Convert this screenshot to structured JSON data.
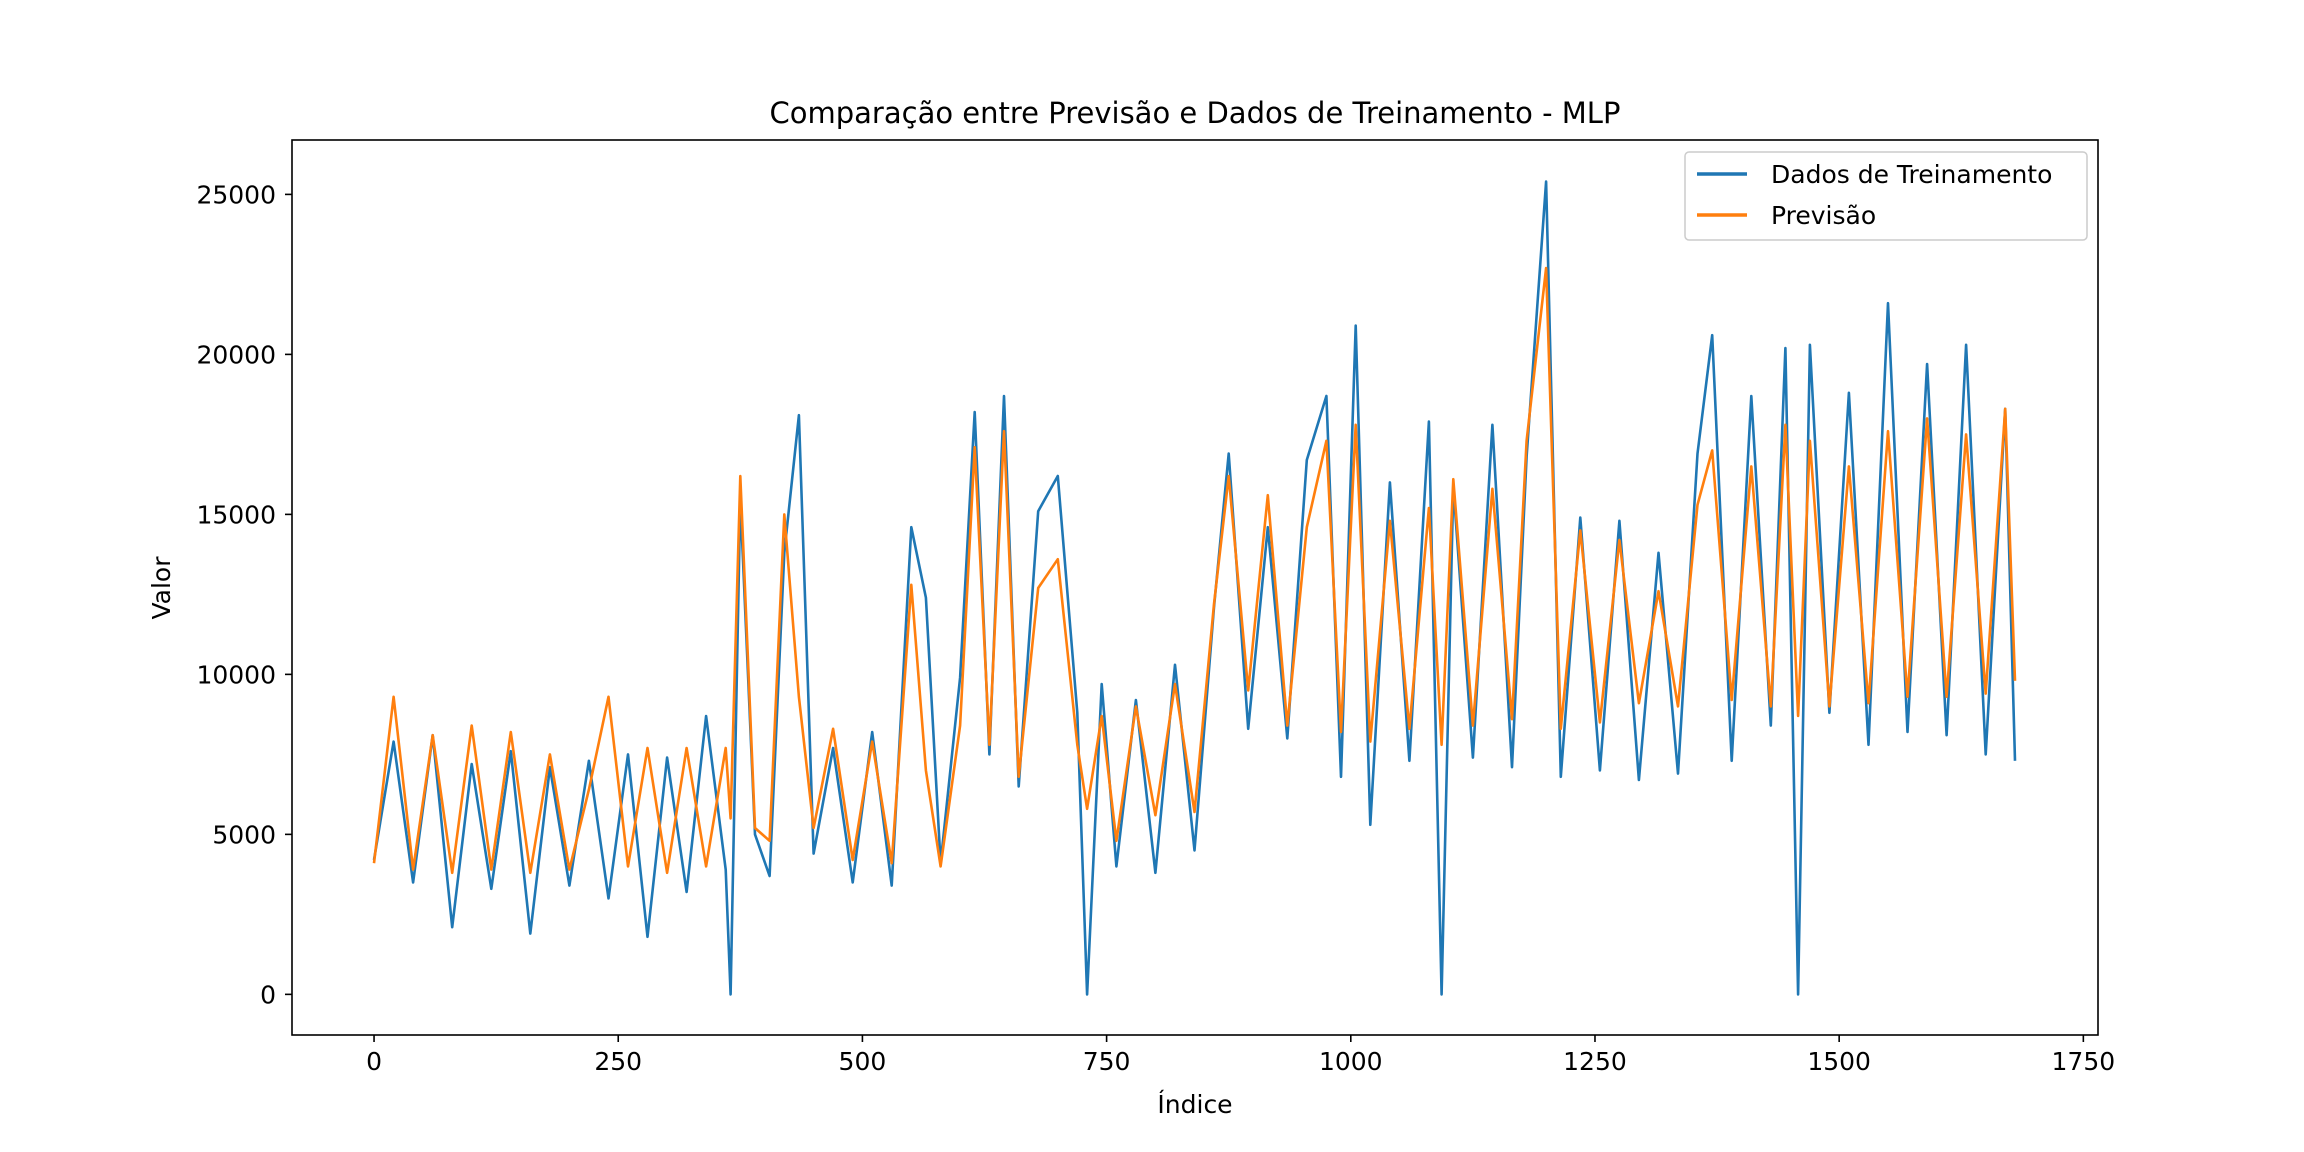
{
  "chart_data": {
    "type": "line",
    "title": "Comparação entre Previsão e Dados de Treinamento - MLP",
    "xlabel": "Índice",
    "ylabel": "Valor",
    "xlim": [
      -84,
      1765
    ],
    "ylim": [
      -1270,
      26700
    ],
    "xticks": [
      0,
      250,
      500,
      750,
      1000,
      1250,
      1500,
      1750
    ],
    "yticks": [
      0,
      5000,
      10000,
      15000,
      20000,
      25000
    ],
    "grid": false,
    "legend_position": "top-right",
    "series": [
      {
        "name": "Dados de Treinamento",
        "color": "#1f77b4",
        "x": [
          0,
          20,
          40,
          60,
          80,
          100,
          120,
          140,
          160,
          180,
          200,
          220,
          240,
          260,
          280,
          300,
          320,
          340,
          360,
          365,
          375,
          390,
          405,
          420,
          435,
          450,
          470,
          490,
          510,
          530,
          550,
          565,
          580,
          600,
          615,
          630,
          645,
          660,
          680,
          700,
          720,
          730,
          745,
          760,
          780,
          800,
          820,
          840,
          860,
          875,
          895,
          915,
          935,
          955,
          975,
          990,
          1005,
          1020,
          1040,
          1060,
          1080,
          1093,
          1105,
          1125,
          1145,
          1165,
          1180,
          1200,
          1215,
          1235,
          1255,
          1275,
          1295,
          1315,
          1335,
          1355,
          1370,
          1390,
          1410,
          1430,
          1445,
          1458,
          1470,
          1490,
          1510,
          1530,
          1550,
          1570,
          1590,
          1610,
          1630,
          1650,
          1670,
          1680
        ],
        "y": [
          4200,
          7900,
          3500,
          8100,
          2100,
          7200,
          3300,
          7600,
          1900,
          7100,
          3400,
          7300,
          3000,
          7500,
          1800,
          7400,
          3200,
          8700,
          3900,
          0,
          15500,
          5000,
          3700,
          13800,
          18100,
          4400,
          7700,
          3500,
          8200,
          3400,
          14600,
          12400,
          4100,
          9900,
          18200,
          7500,
          18700,
          6500,
          15100,
          16200,
          8800,
          0,
          9700,
          4000,
          9200,
          3800,
          10300,
          4500,
          12100,
          16900,
          8300,
          14600,
          8000,
          16700,
          18700,
          6800,
          20900,
          5300,
          16000,
          7300,
          17900,
          0,
          15900,
          7400,
          17800,
          7100,
          16800,
          25400,
          6800,
          14900,
          7000,
          14800,
          6700,
          13800,
          6900,
          16900,
          20600,
          7300,
          18700,
          8400,
          20200,
          0,
          20300,
          8800,
          18800,
          7800,
          21600,
          8200,
          19700,
          8100,
          20300,
          7500,
          18300,
          7300
        ]
      },
      {
        "name": "Previsão",
        "color": "#ff7f0e",
        "x": [
          0,
          20,
          40,
          60,
          80,
          100,
          120,
          140,
          160,
          180,
          200,
          220,
          240,
          260,
          280,
          300,
          320,
          340,
          360,
          365,
          375,
          390,
          405,
          420,
          435,
          450,
          470,
          490,
          510,
          530,
          550,
          565,
          580,
          600,
          615,
          630,
          645,
          660,
          680,
          700,
          720,
          730,
          745,
          760,
          780,
          800,
          820,
          840,
          860,
          875,
          895,
          915,
          935,
          955,
          975,
          990,
          1005,
          1020,
          1040,
          1060,
          1080,
          1093,
          1105,
          1125,
          1145,
          1165,
          1180,
          1200,
          1215,
          1235,
          1255,
          1275,
          1295,
          1315,
          1335,
          1355,
          1370,
          1390,
          1410,
          1430,
          1445,
          1458,
          1470,
          1490,
          1510,
          1530,
          1550,
          1570,
          1590,
          1610,
          1630,
          1650,
          1670,
          1680
        ],
        "y": [
          4100,
          9300,
          3900,
          8100,
          3800,
          8400,
          3900,
          8200,
          3800,
          7500,
          3900,
          6400,
          9300,
          4000,
          7700,
          3800,
          7700,
          4000,
          7700,
          5500,
          16200,
          5200,
          4800,
          15000,
          9300,
          5200,
          8300,
          4200,
          7900,
          4100,
          12800,
          7000,
          4000,
          8400,
          17100,
          7800,
          17600,
          6800,
          12700,
          13600,
          7800,
          5800,
          8700,
          4800,
          9000,
          5600,
          9700,
          5700,
          12200,
          16200,
          9500,
          15600,
          8400,
          14600,
          17300,
          8200,
          17800,
          7900,
          14800,
          8300,
          15200,
          7800,
          16100,
          8400,
          15800,
          8600,
          17300,
          22700,
          8300,
          14500,
          8500,
          14200,
          9100,
          12600,
          9000,
          15300,
          17000,
          9200,
          16500,
          9000,
          17800,
          8700,
          17300,
          9000,
          16500,
          9100,
          17600,
          9300,
          18000,
          9300,
          17500,
          9400,
          18300,
          9800
        ]
      }
    ]
  }
}
